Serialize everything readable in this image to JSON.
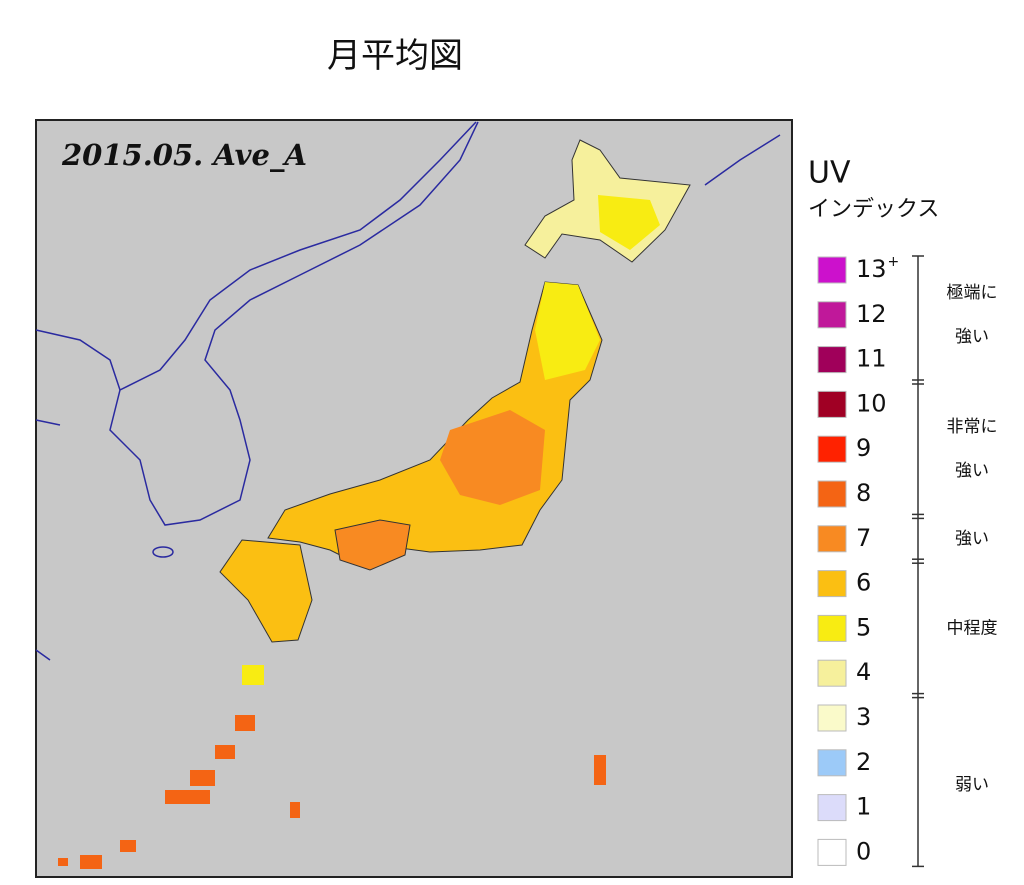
{
  "title": "月平均図",
  "map": {
    "label": "2015.05. Ave_A"
  },
  "legend": {
    "title": "UV",
    "subtitle": "インデックス",
    "items": [
      {
        "label": "13",
        "sup": "+",
        "color": "#cc11cc"
      },
      {
        "label": "12",
        "color": "#c0189a"
      },
      {
        "label": "11",
        "color": "#a0005a"
      },
      {
        "label": "10",
        "color": "#a00024"
      },
      {
        "label": "9",
        "color": "#ff2200"
      },
      {
        "label": "8",
        "color": "#f46414"
      },
      {
        "label": "7",
        "color": "#f88a22"
      },
      {
        "label": "6",
        "color": "#fbbf12"
      },
      {
        "label": "5",
        "color": "#f8ec12"
      },
      {
        "label": "4",
        "color": "#f6f09c"
      },
      {
        "label": "3",
        "color": "#fafaca"
      },
      {
        "label": "2",
        "color": "#9ccaf8"
      },
      {
        "label": "1",
        "color": "#dcdcfa"
      },
      {
        "label": "0",
        "color": "#ffffff"
      }
    ],
    "groups": [
      {
        "lines": [
          "極端に",
          "強い"
        ]
      },
      {
        "lines": [
          "非常に",
          "強い"
        ]
      },
      {
        "lines": [
          "強い"
        ]
      },
      {
        "lines": [
          "中程度"
        ]
      },
      {
        "lines": [
          "弱い"
        ]
      }
    ]
  }
}
